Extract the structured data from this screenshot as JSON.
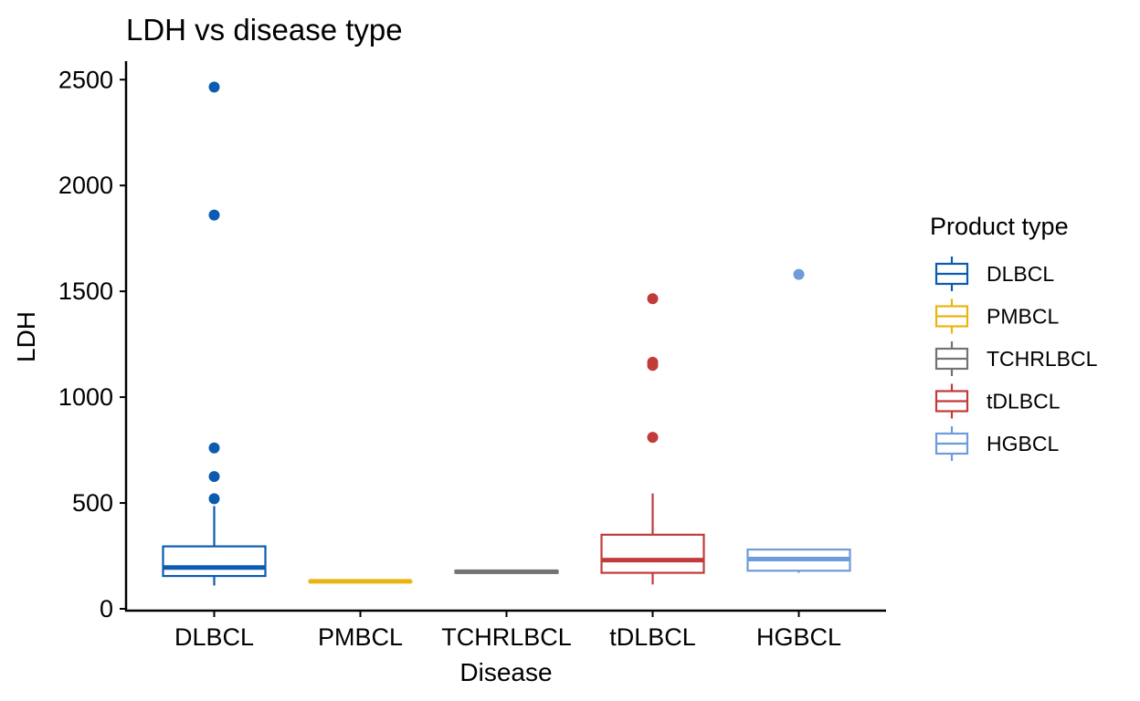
{
  "chart_data": {
    "type": "box",
    "title": "LDH vs disease type",
    "xlabel": "Disease",
    "ylabel": "LDH",
    "ylim": [
      0,
      2580
    ],
    "yticks": [
      0,
      500,
      1000,
      1500,
      2000,
      2500
    ],
    "grid": false,
    "legend_placement": "right",
    "categories": [
      "DLBCL",
      "PMBCL",
      "TCHRLBCL",
      "tDLBCL",
      "HGBCL"
    ],
    "legend": {
      "title": "Product type",
      "entries": [
        "DLBCL",
        "PMBCL",
        "TCHRLBCL",
        "tDLBCL",
        "HGBCL"
      ]
    },
    "series": [
      {
        "name": "DLBCL",
        "color": "#0C5BB0",
        "whisker_low": 110,
        "q1": 155,
        "median": 195,
        "q3": 295,
        "whisker_high": 485,
        "outliers": [
          520,
          625,
          760,
          1860,
          2465
        ]
      },
      {
        "name": "PMBCL",
        "color": "#EBB312",
        "whisker_low": 130,
        "q1": 130,
        "median": 130,
        "q3": 130,
        "whisker_high": 130,
        "outliers": []
      },
      {
        "name": "TCHRLBCL",
        "color": "#737373",
        "whisker_low": 170,
        "q1": 170,
        "median": 175,
        "q3": 180,
        "whisker_high": 180,
        "outliers": []
      },
      {
        "name": "tDLBCL",
        "color": "#C13B3B",
        "whisker_low": 115,
        "q1": 170,
        "median": 230,
        "q3": 350,
        "whisker_high": 545,
        "outliers": [
          810,
          1150,
          1165,
          1465
        ]
      },
      {
        "name": "HGBCL",
        "color": "#6E9BD9",
        "whisker_low": 170,
        "q1": 180,
        "median": 235,
        "q3": 280,
        "whisker_high": 280,
        "outliers": [
          1580
        ]
      }
    ]
  }
}
